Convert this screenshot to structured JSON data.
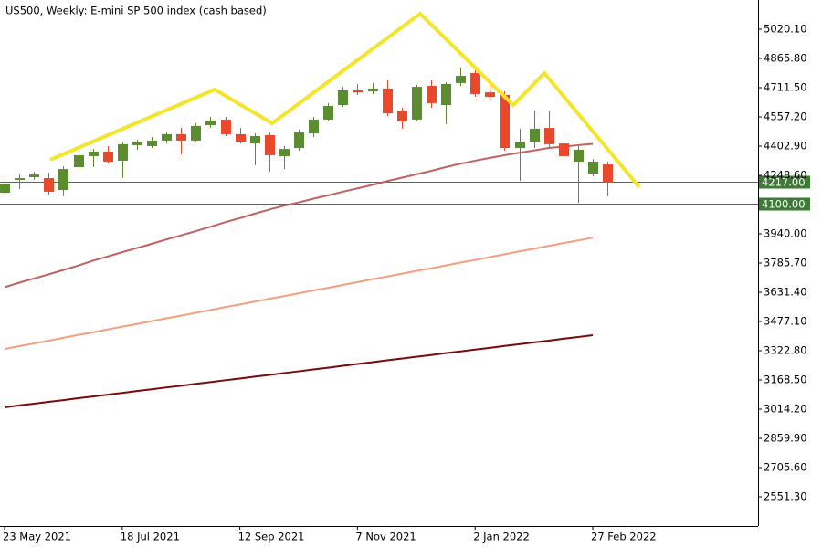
{
  "chart_data": {
    "type": "candlestick",
    "title": "US500, Weekly:  E-mini SP 500 index (cash based)",
    "categories": [
      "23 May 2021",
      null,
      null,
      null,
      null,
      null,
      null,
      null,
      "18 Jul 2021",
      null,
      null,
      null,
      null,
      null,
      null,
      null,
      "12 Sep 2021",
      null,
      null,
      null,
      null,
      null,
      null,
      null,
      "7 Nov 2021",
      null,
      null,
      null,
      null,
      null,
      null,
      null,
      "2 Jan 2022",
      null,
      null,
      null,
      null,
      null,
      null,
      null,
      "27 Feb 2022",
      null
    ],
    "open": [
      4157,
      4225,
      4239,
      4234,
      4171,
      4292,
      4350,
      4374,
      4326,
      4408,
      4403,
      4432,
      4466,
      4432,
      4514,
      4543,
      4466,
      4417,
      4461,
      4350,
      4393,
      4470,
      4543,
      4620,
      4697,
      4692,
      4707,
      4591,
      4543,
      4721,
      4620,
      4736,
      4789,
      4687,
      4673,
      4393,
      4427,
      4499,
      4417,
      4321,
      4258,
      4306
    ],
    "high": [
      4220,
      4253,
      4268,
      4263,
      4297,
      4369,
      4388,
      4403,
      4427,
      4437,
      4451,
      4475,
      4499,
      4523,
      4557,
      4557,
      4499,
      4470,
      4475,
      4403,
      4490,
      4557,
      4630,
      4716,
      4731,
      4736,
      4750,
      4605,
      4726,
      4750,
      4740,
      4818,
      4827,
      4740,
      4692,
      4495,
      4591,
      4586,
      4475,
      4403,
      4335,
      4321
    ],
    "low": [
      4152,
      4176,
      4225,
      4147,
      4138,
      4278,
      4292,
      4311,
      4234,
      4384,
      4393,
      4417,
      4360,
      4427,
      4499,
      4456,
      4417,
      4302,
      4268,
      4282,
      4379,
      4451,
      4533,
      4610,
      4673,
      4678,
      4562,
      4495,
      4533,
      4605,
      4519,
      4721,
      4663,
      4649,
      4379,
      4220,
      4393,
      4393,
      4331,
      4104,
      4244,
      4138
    ],
    "close": [
      4205,
      4234,
      4253,
      4162,
      4282,
      4355,
      4374,
      4321,
      4413,
      4422,
      4432,
      4466,
      4432,
      4509,
      4538,
      4466,
      4427,
      4456,
      4355,
      4388,
      4475,
      4543,
      4615,
      4697,
      4687,
      4707,
      4576,
      4533,
      4716,
      4630,
      4731,
      4774,
      4678,
      4663,
      4393,
      4427,
      4495,
      4413,
      4350,
      4384,
      4321,
      4210
    ],
    "up_color": "#5b8c2f",
    "down_color": "#e8492d",
    "moving_averages": [
      {
        "color": "#c0625f",
        "values": [
          3658,
          3682,
          3704,
          3726,
          3749,
          3772,
          3798,
          3820,
          3843,
          3865,
          3887,
          3910,
          3932,
          3954,
          3977,
          4001,
          4023,
          4046,
          4068,
          4088,
          4106,
          4125,
          4143,
          4162,
          4180,
          4198,
          4218,
          4236,
          4254,
          4272,
          4292,
          4310,
          4326,
          4341,
          4355,
          4368,
          4380,
          4393,
          4400,
          4408,
          4415,
          null
        ]
      },
      {
        "color": "#f4a07f",
        "values": [
          3332,
          3347,
          3361,
          3376,
          3391,
          3406,
          3420,
          3435,
          3450,
          3464,
          3479,
          3494,
          3508,
          3523,
          3538,
          3553,
          3567,
          3582,
          3597,
          3611,
          3626,
          3641,
          3655,
          3670,
          3685,
          3700,
          3714,
          3729,
          3744,
          3758,
          3773,
          3788,
          3802,
          3817,
          3832,
          3847,
          3861,
          3876,
          3891,
          3905,
          3920,
          null
        ]
      },
      {
        "color": "#7a0a0a",
        "values": [
          3024,
          3034,
          3043,
          3053,
          3062,
          3072,
          3081,
          3091,
          3100,
          3110,
          3119,
          3129,
          3138,
          3148,
          3157,
          3167,
          3176,
          3186,
          3195,
          3205,
          3214,
          3224,
          3233,
          3243,
          3253,
          3262,
          3272,
          3281,
          3291,
          3300,
          3310,
          3319,
          3329,
          3338,
          3348,
          3357,
          3367,
          3376,
          3386,
          3395,
          3405,
          null
        ]
      }
    ],
    "hlines": [
      {
        "value": 4217,
        "label": "4217.00",
        "color": "#3d7a35"
      },
      {
        "value": 4100,
        "label": "4100.00",
        "color": "#3d7a35"
      }
    ],
    "ylim": [
      2397,
      5174.4
    ],
    "yticks": [
      {
        "value": 5020.1,
        "label": "5020.10"
      },
      {
        "value": 4865.8,
        "label": "4865.80"
      },
      {
        "value": 4711.5,
        "label": "4711.50"
      },
      {
        "value": 4557.2,
        "label": "4557.20"
      },
      {
        "value": 4402.9,
        "label": "4402.90"
      },
      {
        "value": 4248.6,
        "label": "4248.60"
      },
      {
        "value": 3940,
        "label": "3940.00"
      },
      {
        "value": 3785.7,
        "label": "3785.70"
      },
      {
        "value": 3631.4,
        "label": "3631.40"
      },
      {
        "value": 3477.1,
        "label": "3477.10"
      },
      {
        "value": 3322.8,
        "label": "3322.80"
      },
      {
        "value": 3168.5,
        "label": "3168.50"
      },
      {
        "value": 3014.2,
        "label": "3014.20"
      },
      {
        "value": 2859.9,
        "label": "2859.90"
      },
      {
        "value": 2705.6,
        "label": "2705.60"
      },
      {
        "value": 2551.3,
        "label": "2551.30"
      }
    ]
  }
}
